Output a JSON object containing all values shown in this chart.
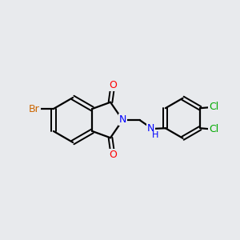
{
  "background_color": "#e8eaed",
  "bond_color": "#000000",
  "atom_colors": {
    "O": "#ff0000",
    "N": "#0000ff",
    "Br": "#cc6600",
    "Cl": "#00aa00"
  },
  "figsize": [
    3.0,
    3.0
  ],
  "dpi": 100
}
